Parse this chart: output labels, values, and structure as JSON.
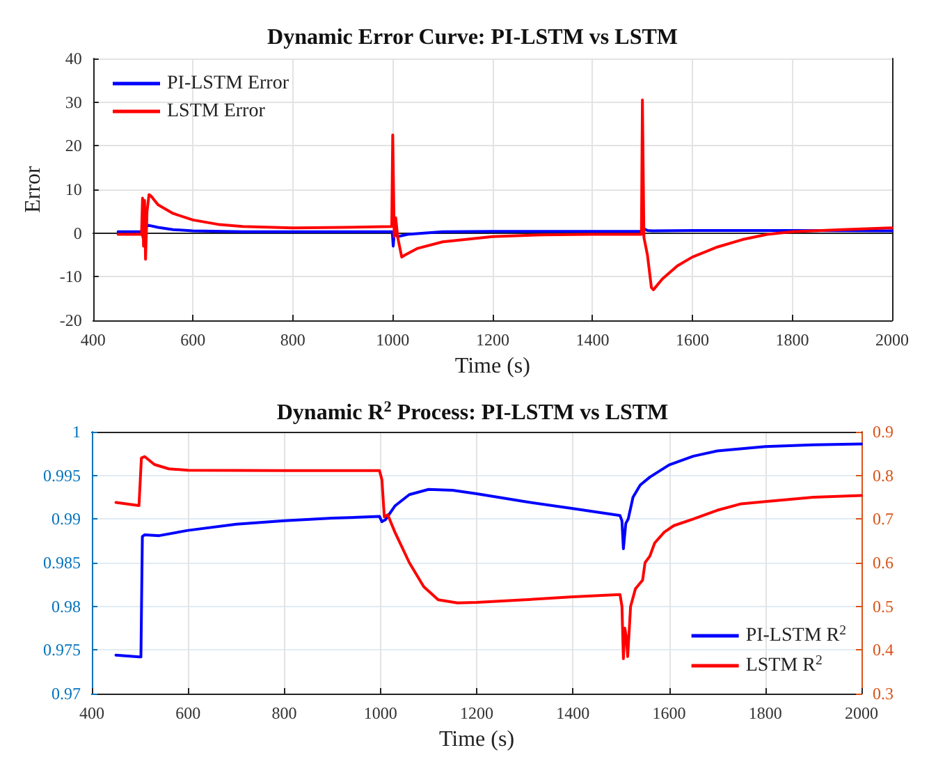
{
  "chart_data": [
    {
      "type": "line",
      "title": "Dynamic Error Curve: PI-LSTM vs LSTM",
      "xlabel": "Time (s)",
      "ylabel": "Error",
      "xlim": [
        400,
        2000
      ],
      "xticks": [
        400,
        600,
        800,
        1000,
        1200,
        1400,
        1600,
        1800,
        2000
      ],
      "ylim": [
        -20,
        40
      ],
      "yticks": [
        -20,
        -10,
        0,
        10,
        20,
        30,
        40
      ],
      "grid": true,
      "legend": "top left",
      "marker": "none",
      "line_style": "solid",
      "series": [
        {
          "name": "PI-LSTM Error",
          "color": "#0000ff",
          "x": [
            450,
            498,
            500,
            502,
            510,
            530,
            560,
            600,
            700,
            800,
            999,
            1001,
            1003,
            1010,
            1030,
            1100,
            1200,
            1400,
            1499,
            1502,
            1510,
            1520,
            1600,
            1800,
            2000
          ],
          "values": [
            0.3,
            0.3,
            -1,
            1,
            1.8,
            1.3,
            0.8,
            0.5,
            0.3,
            0.3,
            0.3,
            -3,
            0,
            -0.8,
            -0.3,
            0.3,
            0.4,
            0.4,
            0.4,
            1,
            0.6,
            0.5,
            0.6,
            0.6,
            0.5
          ]
        },
        {
          "name": "LSTM Error",
          "color": "#ff0000",
          "x": [
            450,
            497,
            499,
            501,
            503,
            505,
            508,
            512,
            516,
            530,
            560,
            600,
            650,
            700,
            800,
            900,
            998,
            1000,
            1003,
            1006,
            1010,
            1018,
            1025,
            1050,
            1100,
            1200,
            1300,
            1400,
            1498,
            1500,
            1503,
            1510,
            1518,
            1522,
            1540,
            1570,
            1600,
            1650,
            1700,
            1750,
            1800,
            1900,
            2000
          ],
          "values": [
            -0.3,
            -0.3,
            8,
            -3,
            7.5,
            -6,
            5,
            8.8,
            8.5,
            6.5,
            4.5,
            3,
            2,
            1.5,
            1.2,
            1.3,
            1.5,
            22.5,
            -0.8,
            3.5,
            -1,
            -5.5,
            -5,
            -3.5,
            -2,
            -0.8,
            -0.4,
            -0.3,
            -0.3,
            30.5,
            -1,
            -5,
            -12.5,
            -13,
            -10.5,
            -7.5,
            -5.5,
            -3.2,
            -1.5,
            -0.3,
            0.3,
            0.8,
            1.2
          ]
        }
      ]
    },
    {
      "type": "line",
      "title": "Dynamic R$^{2}$ Process: PI-LSTM vs LSTM",
      "xlabel": "Time (s)",
      "xlim": [
        400,
        2000
      ],
      "xticks": [
        400,
        600,
        800,
        1000,
        1200,
        1400,
        1600,
        1800,
        2000
      ],
      "ylim": [
        0.97,
        1
      ],
      "yticks": [
        0.97,
        0.975,
        0.98,
        0.985,
        0.99,
        0.995,
        1
      ],
      "y2lim": [
        0.3,
        0.9
      ],
      "y2ticks": [
        0.3,
        0.4,
        0.5,
        0.6,
        0.7,
        0.8,
        0.9
      ],
      "grid": true,
      "legend": "bottom right",
      "marker": "none",
      "line_style": "solid",
      "series": [
        {
          "name": "PI-LSTM R$^{2}$",
          "color": "#0000ff",
          "x": [
            450,
            498,
            502,
            505,
            510,
            540,
            600,
            700,
            800,
            900,
            998,
            1003,
            1010,
            1030,
            1060,
            1100,
            1150,
            1200,
            1300,
            1400,
            1498,
            1502,
            1505,
            1510,
            1515,
            1525,
            1540,
            1560,
            1600,
            1650,
            1700,
            1800,
            1900,
            2000
          ],
          "values": [
            0.9744,
            0.9742,
            0.9742,
            0.988,
            0.9882,
            0.9881,
            0.9887,
            0.9894,
            0.9898,
            0.9901,
            0.9903,
            0.9897,
            0.9899,
            0.9915,
            0.9928,
            0.9934,
            0.9933,
            0.9929,
            0.992,
            0.9912,
            0.9904,
            0.9898,
            0.9866,
            0.9895,
            0.99,
            0.9925,
            0.9939,
            0.9948,
            0.9962,
            0.9972,
            0.9978,
            0.9983,
            0.9985,
            0.9986
          ]
        },
        {
          "name": "LSTM R$^{2}$",
          "color": "#ff0000",
          "axis": "y2",
          "x": [
            450,
            498,
            503,
            510,
            530,
            560,
            600,
            800,
            998,
            1003,
            1008,
            1015,
            1030,
            1060,
            1090,
            1120,
            1160,
            1200,
            1300,
            1400,
            1498,
            1502,
            1505,
            1508,
            1511,
            1514,
            1520,
            1530,
            1545,
            1550,
            1560,
            1570,
            1590,
            1610,
            1650,
            1700,
            1750,
            1800,
            1900,
            2000
          ],
          "values": [
            0.738,
            0.731,
            0.84,
            0.843,
            0.825,
            0.815,
            0.812,
            0.811,
            0.811,
            0.79,
            0.705,
            0.71,
            0.67,
            0.6,
            0.545,
            0.515,
            0.508,
            0.509,
            0.515,
            0.522,
            0.527,
            0.5,
            0.38,
            0.45,
            0.43,
            0.385,
            0.5,
            0.54,
            0.56,
            0.6,
            0.615,
            0.645,
            0.67,
            0.685,
            0.7,
            0.72,
            0.735,
            0.74,
            0.75,
            0.754
          ]
        }
      ]
    }
  ]
}
